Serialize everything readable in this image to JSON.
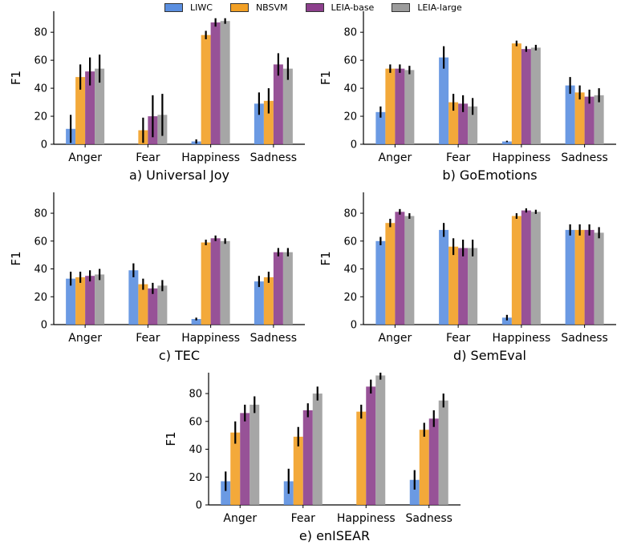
{
  "legend": [
    "LIWC",
    "NBSVM",
    "LEIA-base",
    "LEIA-large"
  ],
  "colors": {
    "LIWC": "#5b8fe0",
    "NBSVM": "#f2a025",
    "LEIA-base": "#8c3f8c",
    "LEIA-large": "#9c9c9c"
  },
  "chart_data": [
    {
      "type": "bar",
      "title": "a) Universal Joy",
      "ylabel": "F1",
      "ylim": [
        0,
        95
      ],
      "yticks": [
        0,
        20,
        40,
        60,
        80
      ],
      "categories": [
        "Anger",
        "Fear",
        "Happiness",
        "Sadness"
      ],
      "series": [
        {
          "name": "LIWC",
          "values": [
            11,
            0,
            2,
            29
          ],
          "errors": [
            10,
            0,
            1.5,
            8
          ]
        },
        {
          "name": "NBSVM",
          "values": [
            48,
            10,
            78,
            31
          ],
          "errors": [
            9,
            9,
            3,
            9
          ]
        },
        {
          "name": "LEIA-base",
          "values": [
            52,
            20,
            87,
            57
          ],
          "errors": [
            10,
            15,
            3,
            8
          ]
        },
        {
          "name": "LEIA-large",
          "values": [
            54,
            21,
            88,
            54
          ],
          "errors": [
            10,
            15,
            2,
            8
          ]
        }
      ]
    },
    {
      "type": "bar",
      "title": "b) GoEmotions",
      "ylabel": "F1",
      "ylim": [
        0,
        95
      ],
      "yticks": [
        0,
        20,
        40,
        60,
        80
      ],
      "categories": [
        "Anger",
        "Fear",
        "Happiness",
        "Sadness"
      ],
      "series": [
        {
          "name": "LIWC",
          "values": [
            23,
            62,
            2,
            42
          ],
          "errors": [
            4,
            8,
            0.5,
            6
          ]
        },
        {
          "name": "NBSVM",
          "values": [
            54,
            30,
            72,
            37
          ],
          "errors": [
            3,
            6,
            2,
            5
          ]
        },
        {
          "name": "LEIA-base",
          "values": [
            54,
            29,
            68,
            34
          ],
          "errors": [
            3,
            6,
            2,
            5
          ]
        },
        {
          "name": "LEIA-large",
          "values": [
            53,
            27,
            69,
            35
          ],
          "errors": [
            3,
            6,
            2,
            5
          ]
        }
      ]
    },
    {
      "type": "bar",
      "title": "c) TEC",
      "ylabel": "F1",
      "ylim": [
        0,
        95
      ],
      "yticks": [
        0,
        20,
        40,
        60,
        80
      ],
      "categories": [
        "Anger",
        "Fear",
        "Happiness",
        "Sadness"
      ],
      "series": [
        {
          "name": "LIWC",
          "values": [
            33,
            39,
            4,
            31
          ],
          "errors": [
            5,
            5,
            1,
            4
          ]
        },
        {
          "name": "NBSVM",
          "values": [
            34,
            29,
            59,
            34
          ],
          "errors": [
            4,
            4,
            2,
            4
          ]
        },
        {
          "name": "LEIA-base",
          "values": [
            35,
            26,
            62,
            52
          ],
          "errors": [
            4,
            4,
            2,
            3
          ]
        },
        {
          "name": "LEIA-large",
          "values": [
            36,
            28,
            60,
            52
          ],
          "errors": [
            4,
            4,
            2,
            3
          ]
        }
      ]
    },
    {
      "type": "bar",
      "title": "d) SemEval",
      "ylabel": "F1",
      "ylim": [
        0,
        95
      ],
      "yticks": [
        0,
        20,
        40,
        60,
        80
      ],
      "categories": [
        "Anger",
        "Fear",
        "Happiness",
        "Sadness"
      ],
      "series": [
        {
          "name": "LIWC",
          "values": [
            60,
            68,
            5,
            68
          ],
          "errors": [
            3,
            5,
            2,
            4
          ]
        },
        {
          "name": "NBSVM",
          "values": [
            73,
            56,
            78,
            68
          ],
          "errors": [
            3,
            6,
            2,
            4
          ]
        },
        {
          "name": "LEIA-base",
          "values": [
            81,
            55,
            82,
            68
          ],
          "errors": [
            2,
            6,
            1.5,
            4
          ]
        },
        {
          "name": "LEIA-large",
          "values": [
            78,
            55,
            81,
            66
          ],
          "errors": [
            2,
            6,
            1.5,
            4
          ]
        }
      ]
    },
    {
      "type": "bar",
      "title": "e) enISEAR",
      "ylabel": "F1",
      "ylim": [
        0,
        95
      ],
      "yticks": [
        0,
        20,
        40,
        60,
        80
      ],
      "categories": [
        "Anger",
        "Fear",
        "Happiness",
        "Sadness"
      ],
      "series": [
        {
          "name": "LIWC",
          "values": [
            17,
            17,
            0,
            18
          ],
          "errors": [
            7,
            9,
            0,
            7
          ]
        },
        {
          "name": "NBSVM",
          "values": [
            52,
            49,
            67,
            54
          ],
          "errors": [
            8,
            7,
            5,
            5
          ]
        },
        {
          "name": "LEIA-base",
          "values": [
            66,
            68,
            85,
            62
          ],
          "errors": [
            6,
            5,
            5,
            6
          ]
        },
        {
          "name": "LEIA-large",
          "values": [
            72,
            80,
            93,
            75
          ],
          "errors": [
            6,
            5,
            3,
            5
          ]
        }
      ]
    }
  ]
}
